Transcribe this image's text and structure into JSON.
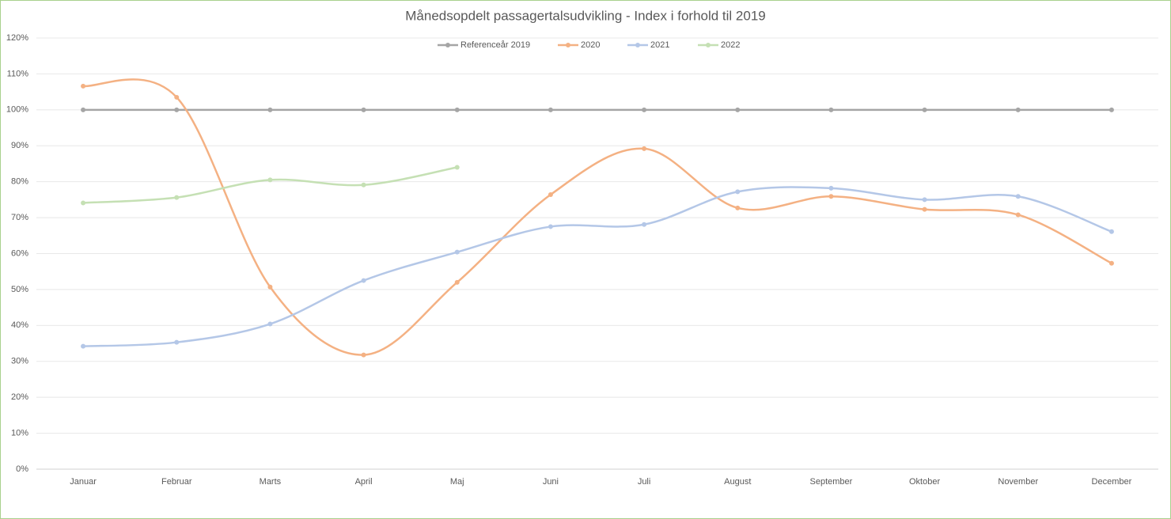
{
  "chart_data": {
    "type": "line",
    "title": "Månedsopdelt passagertalsudvikling - Index i forhold til 2019",
    "categories": [
      "Januar",
      "Februar",
      "Marts",
      "April",
      "Maj",
      "Juni",
      "Juli",
      "August",
      "September",
      "Oktober",
      "November",
      "December"
    ],
    "series": [
      {
        "name": "Referenceår 2019",
        "color": "#a5a5a5",
        "values": [
          100,
          100,
          100,
          100,
          100,
          100,
          100,
          100,
          100,
          100,
          100,
          100
        ]
      },
      {
        "name": "2020",
        "color": "#f4b183",
        "values": [
          106.6,
          103.5,
          50.7,
          31.8,
          52,
          76.4,
          89.2,
          72.7,
          75.9,
          72.3,
          70.8,
          57.3
        ]
      },
      {
        "name": "2021",
        "color": "#b4c7e7",
        "values": [
          34.2,
          35.3,
          40.4,
          52.5,
          60.4,
          67.5,
          68.1,
          77.2,
          78.2,
          75,
          75.9,
          66.1
        ]
      },
      {
        "name": "2022",
        "color": "#c5e0b4",
        "values": [
          74.1,
          75.6,
          80.5,
          79.1,
          84,
          null,
          null,
          null,
          null,
          null,
          null,
          null
        ]
      }
    ],
    "ylim": [
      0,
      120
    ],
    "yticks": [
      {
        "value": 0,
        "label": "0%"
      },
      {
        "value": 10,
        "label": "10%"
      },
      {
        "value": 20,
        "label": "20%"
      },
      {
        "value": 30,
        "label": "30%"
      },
      {
        "value": 40,
        "label": "40%"
      },
      {
        "value": 50,
        "label": "50%"
      },
      {
        "value": 60,
        "label": "60%"
      },
      {
        "value": 70,
        "label": "70%"
      },
      {
        "value": 80,
        "label": "80%"
      },
      {
        "value": 90,
        "label": "90%"
      },
      {
        "value": 100,
        "label": "100%"
      },
      {
        "value": 110,
        "label": "110%"
      },
      {
        "value": 120,
        "label": "120%"
      }
    ],
    "grid": true,
    "smooth": true,
    "legend": "top"
  }
}
